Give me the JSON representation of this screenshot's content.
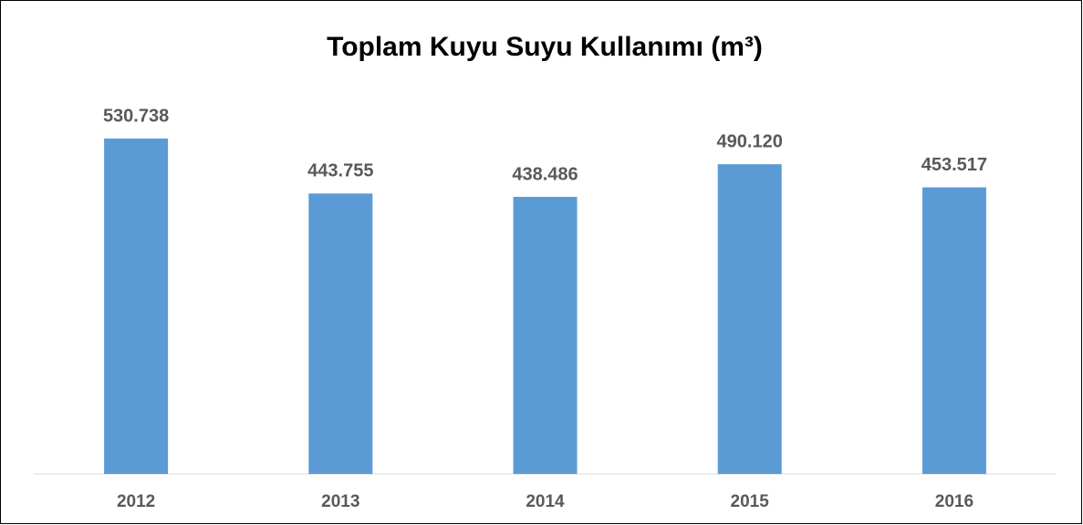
{
  "chart_data": {
    "type": "bar",
    "title": "Toplam Kuyu Suyu Kullanımı (m³)",
    "categories": [
      "2012",
      "2013",
      "2014",
      "2015",
      "2016"
    ],
    "values": [
      530738,
      443755,
      438486,
      490120,
      453517
    ],
    "value_labels": [
      "530.738",
      "443.755",
      "438.486",
      "490.120",
      "453.517"
    ],
    "color": "#5b9bd5",
    "ylim": [
      0,
      600000
    ]
  }
}
